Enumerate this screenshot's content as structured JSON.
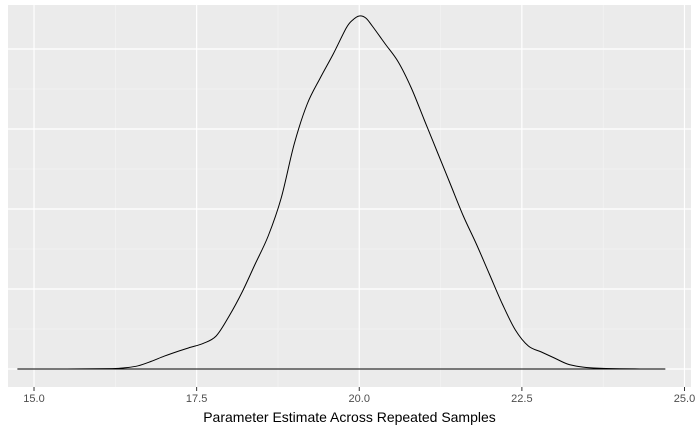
{
  "chart_data": {
    "type": "density",
    "title": "",
    "xlabel": "Parameter Estimate Across Repeated Samples",
    "ylabel": "",
    "xlim": [
      14.6,
      25.1
    ],
    "ylim": [
      -0.009,
      0.182
    ],
    "x_ticks": [
      {
        "value": 15.0,
        "label": "15.0"
      },
      {
        "value": 17.5,
        "label": "17.5"
      },
      {
        "value": 20.0,
        "label": "20.0"
      },
      {
        "value": 22.5,
        "label": "22.5"
      },
      {
        "value": 25.0,
        "label": "25.0"
      }
    ],
    "x_minor_ticks": [
      16.25,
      18.75,
      21.25,
      23.75
    ],
    "y_gridlines": [
      0.0,
      0.04,
      0.08,
      0.12,
      0.16
    ],
    "y_minor_gridlines": [
      0.02,
      0.06,
      0.1,
      0.14
    ],
    "grid": true,
    "colors": {
      "panel_background": "#ebebeb",
      "grid_major": "#ffffff",
      "grid_minor": "#f5f5f5",
      "line": "#000000"
    },
    "series": [
      {
        "x": [
          14.75,
          15.5,
          16.2,
          16.4,
          16.6,
          16.8,
          17.0,
          17.2,
          17.4,
          17.6,
          17.8,
          18.0,
          18.2,
          18.4,
          18.6,
          18.8,
          19.0,
          19.2,
          19.4,
          19.6,
          19.8,
          19.9,
          20.0,
          20.1,
          20.2,
          20.4,
          20.6,
          20.8,
          21.0,
          21.2,
          21.4,
          21.6,
          21.8,
          22.0,
          22.2,
          22.4,
          22.6,
          22.8,
          23.0,
          23.2,
          23.4,
          23.6,
          24.0,
          24.7
        ],
        "y": [
          0.0,
          0.0,
          0.0002,
          0.0006,
          0.0016,
          0.0038,
          0.0064,
          0.0087,
          0.0108,
          0.0128,
          0.0165,
          0.0265,
          0.0385,
          0.0525,
          0.0665,
          0.0855,
          0.1125,
          0.1325,
          0.1455,
          0.1575,
          0.1705,
          0.1745,
          0.1765,
          0.1755,
          0.1715,
          0.1625,
          0.1535,
          0.1405,
          0.1245,
          0.1085,
          0.0925,
          0.0765,
          0.0625,
          0.0475,
          0.0325,
          0.0195,
          0.0115,
          0.0085,
          0.0055,
          0.0025,
          0.0011,
          0.0005,
          0.0001,
          0.0
        ]
      }
    ]
  }
}
